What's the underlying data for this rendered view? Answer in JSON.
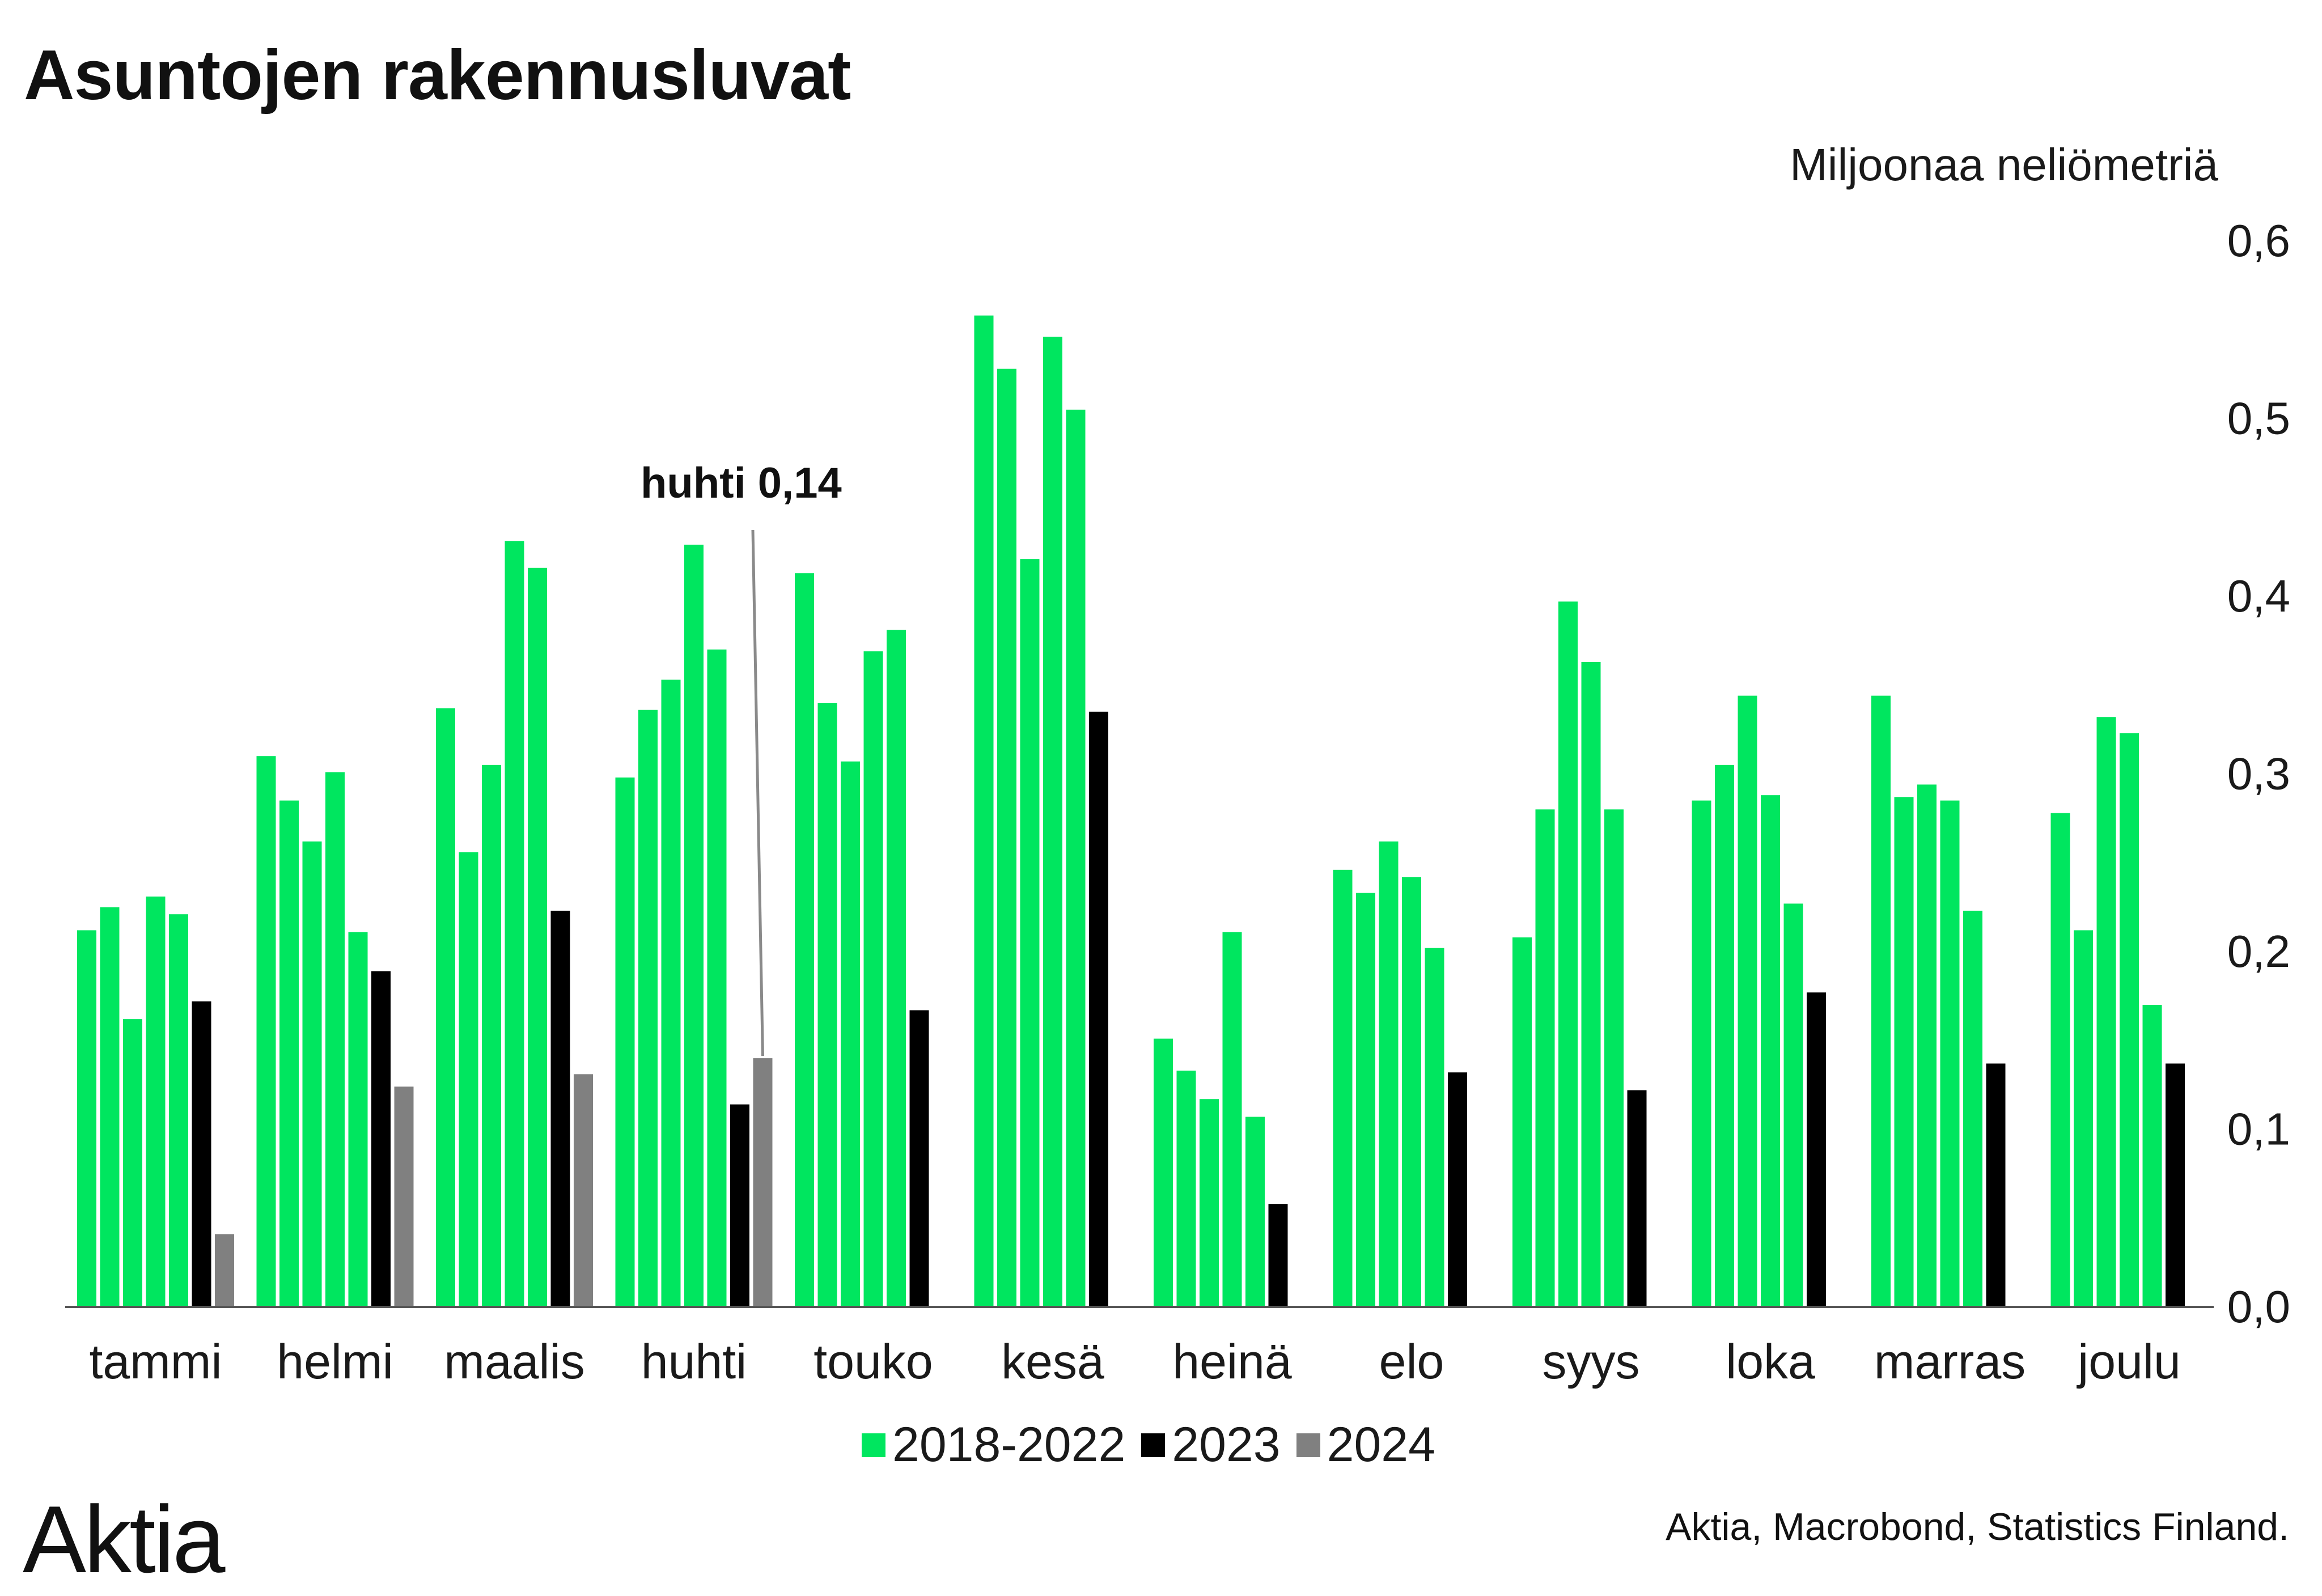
{
  "chart_data": {
    "type": "bar",
    "title": "Asuntojen rakennusluvat",
    "ylabel": "Miljoonaa neliömetriä",
    "ylim": [
      0,
      0.6
    ],
    "yticks": [
      "0,0",
      "0,1",
      "0,2",
      "0,3",
      "0,4",
      "0,5",
      "0,6"
    ],
    "categories": [
      "tammi",
      "helmi",
      "maalis",
      "huhti",
      "touko",
      "kesä",
      "heinä",
      "elo",
      "syys",
      "loka",
      "marras",
      "joulu"
    ],
    "series": [
      {
        "name": "2018",
        "group": "2018-2022",
        "color": "#00e65f",
        "values": [
          0.212,
          0.31,
          0.337,
          0.298,
          0.413,
          0.558,
          0.151,
          0.246,
          0.208,
          0.285,
          0.344,
          0.278
        ]
      },
      {
        "name": "2019",
        "group": "2018-2022",
        "color": "#00e65f",
        "values": [
          0.225,
          0.285,
          0.256,
          0.336,
          0.34,
          0.528,
          0.133,
          0.233,
          0.28,
          0.305,
          0.287,
          0.212
        ]
      },
      {
        "name": "2020",
        "group": "2018-2022",
        "color": "#00e65f",
        "values": [
          0.162,
          0.262,
          0.305,
          0.353,
          0.307,
          0.421,
          0.117,
          0.262,
          0.397,
          0.344,
          0.294,
          0.332
        ]
      },
      {
        "name": "2021",
        "group": "2018-2022",
        "color": "#00e65f",
        "values": [
          0.231,
          0.301,
          0.431,
          0.429,
          0.369,
          0.546,
          0.211,
          0.242,
          0.363,
          0.288,
          0.285,
          0.323
        ]
      },
      {
        "name": "2022",
        "group": "2018-2022",
        "color": "#00e65f",
        "values": [
          0.221,
          0.211,
          0.416,
          0.37,
          0.381,
          0.505,
          0.107,
          0.202,
          0.28,
          0.227,
          0.223,
          0.17
        ]
      },
      {
        "name": "2023",
        "group": "2023",
        "color": "#000000",
        "values": [
          0.172,
          0.189,
          0.223,
          0.114,
          0.167,
          0.335,
          0.058,
          0.132,
          0.122,
          0.177,
          0.137,
          0.137
        ]
      },
      {
        "name": "2024",
        "group": "2024",
        "color": "#808080",
        "values": [
          0.041,
          0.124,
          0.131,
          0.14,
          null,
          null,
          null,
          null,
          null,
          null,
          null,
          null
        ]
      }
    ],
    "legend": [
      {
        "label": "2018-2022",
        "color": "#00e65f"
      },
      {
        "label": "2023",
        "color": "#000000"
      },
      {
        "label": "2024",
        "color": "#808080"
      }
    ],
    "legend_position": "bottom",
    "annotation": {
      "text": "huhti 0,14",
      "category": "huhti",
      "series": "2024"
    }
  },
  "branding": {
    "logo": "Aktia"
  },
  "source": "Aktia, Macrobond, Statistics Finland."
}
